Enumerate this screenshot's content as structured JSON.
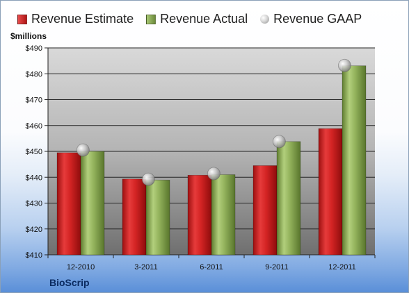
{
  "chart_data": {
    "type": "bar",
    "ylabel": "$millions",
    "ylim": [
      410,
      490
    ],
    "yticks": [
      "$410",
      "$420",
      "$430",
      "$440",
      "$450",
      "$460",
      "$470",
      "$480",
      "$490"
    ],
    "categories": [
      "12-2010",
      "3-2011",
      "6-2011",
      "9-2011",
      "12-2011"
    ],
    "series": [
      {
        "name": "Revenue Estimate",
        "kind": "bar",
        "color": "#c82020",
        "values": [
          449.5,
          439.3,
          440.8,
          444.5,
          458.8
        ]
      },
      {
        "name": "Revenue Actual",
        "kind": "bar",
        "color": "#8aab55",
        "values": [
          450.0,
          438.9,
          441.0,
          453.8,
          483.1
        ]
      },
      {
        "name": "Revenue GAAP",
        "kind": "marker",
        "color": "#b8b8b8",
        "values": [
          450.5,
          439.2,
          441.4,
          453.8,
          483.2
        ]
      }
    ],
    "legend_position": "top",
    "grid": true
  },
  "company": "BioScrip"
}
